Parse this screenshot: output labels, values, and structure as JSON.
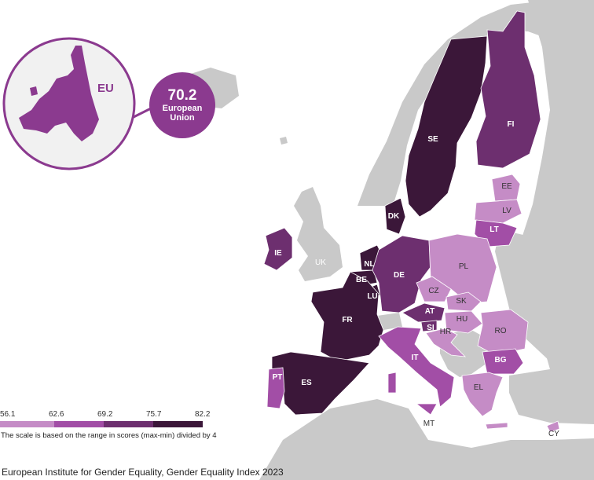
{
  "colors": {
    "land": "#c9c9c9",
    "non_eu": "#c9c9c9",
    "water": "#ffffff",
    "tier1": "#c58cc6",
    "tier2": "#a24ea6",
    "tier3": "#6d2f6f",
    "tier4": "#3b1739",
    "eu_ring": "#8b3a8f",
    "inset_bg": "#f1f1f1"
  },
  "inset": {
    "label": "EU",
    "score": "70.2",
    "name_line1": "European",
    "name_line2": "Union"
  },
  "countries": [
    {
      "code": "SE",
      "tier": 4
    },
    {
      "code": "FI",
      "tier": 3
    },
    {
      "code": "EE",
      "tier": 1
    },
    {
      "code": "LV",
      "tier": 1
    },
    {
      "code": "LT",
      "tier": 2
    },
    {
      "code": "DK",
      "tier": 4
    },
    {
      "code": "IE",
      "tier": 3
    },
    {
      "code": "UK",
      "tier": 0
    },
    {
      "code": "NL",
      "tier": 4
    },
    {
      "code": "BE",
      "tier": 4
    },
    {
      "code": "LU",
      "tier": 4
    },
    {
      "code": "DE",
      "tier": 3
    },
    {
      "code": "PL",
      "tier": 1
    },
    {
      "code": "CZ",
      "tier": 1
    },
    {
      "code": "SK",
      "tier": 1
    },
    {
      "code": "AT",
      "tier": 3
    },
    {
      "code": "HU",
      "tier": 1
    },
    {
      "code": "SI",
      "tier": 3
    },
    {
      "code": "HR",
      "tier": 1
    },
    {
      "code": "RO",
      "tier": 1
    },
    {
      "code": "FR",
      "tier": 4
    },
    {
      "code": "IT",
      "tier": 2
    },
    {
      "code": "BG",
      "tier": 2
    },
    {
      "code": "ES",
      "tier": 4
    },
    {
      "code": "PT",
      "tier": 2
    },
    {
      "code": "EL",
      "tier": 1
    },
    {
      "code": "MT",
      "tier": 0
    },
    {
      "code": "CY",
      "tier": 1
    }
  ],
  "legend": {
    "ticks": [
      "56.1",
      "62.6",
      "69.2",
      "75.7",
      "82.2"
    ],
    "note": "The scale is based on the range in scores (max-min) divided by 4"
  },
  "footer": "European Institute for Gender Equality, Gender Equality Index 2023"
}
